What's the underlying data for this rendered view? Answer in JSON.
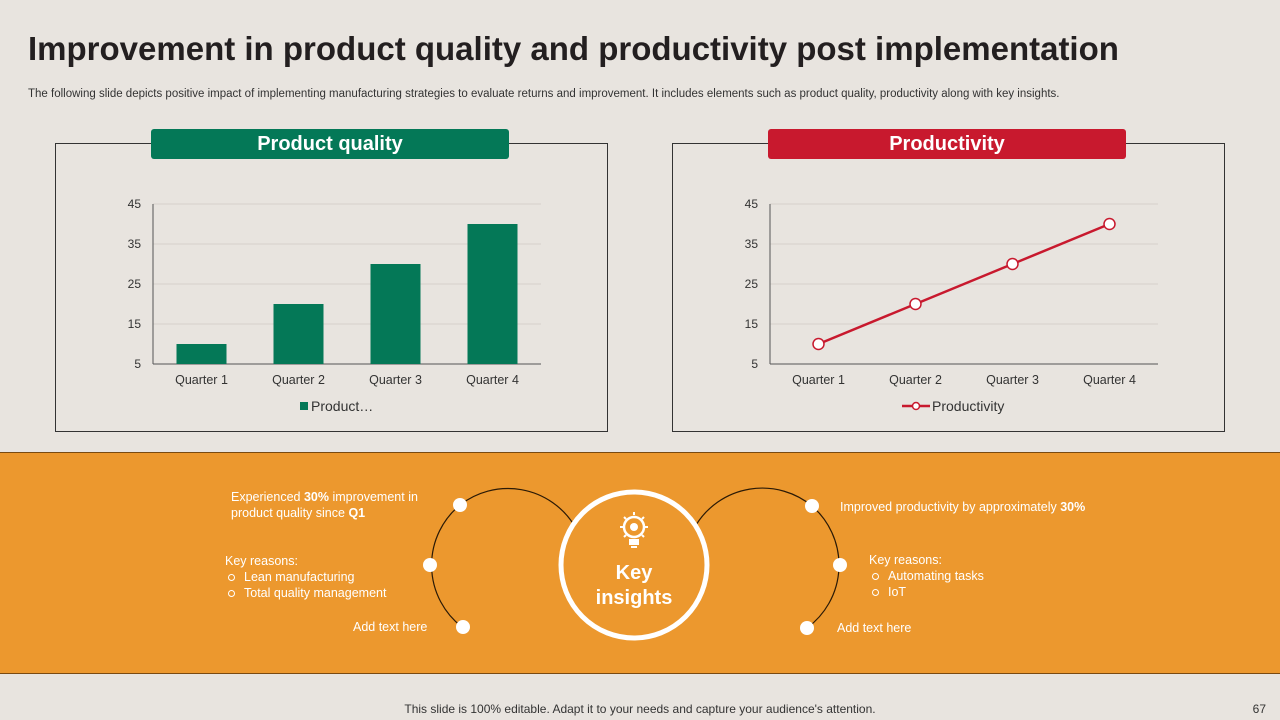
{
  "title": "Improvement in product quality and productivity post implementation",
  "subtitle": "The following slide depicts positive impact of implementing manufacturing strategies to evaluate returns and improvement. It includes elements such as product quality, productivity along with key insights.",
  "colors": {
    "green": "#047857",
    "red": "#c8192e",
    "orange": "#ec982e",
    "background": "#e8e4df"
  },
  "chart_data": [
    {
      "type": "bar",
      "title": "Product quality",
      "categories": [
        "Quarter 1",
        "Quarter 2",
        "Quarter 3",
        "Quarter 4"
      ],
      "series": [
        {
          "name": "Product…",
          "values": [
            10,
            20,
            30,
            40
          ]
        }
      ],
      "yticks": [
        "45",
        "35",
        "25",
        "15",
        "5"
      ],
      "ylim": [
        5,
        45
      ],
      "legend": "bottom",
      "grid": true
    },
    {
      "type": "line",
      "title": "Productivity",
      "categories": [
        "Quarter 1",
        "Quarter 2",
        "Quarter 3",
        "Quarter 4"
      ],
      "series": [
        {
          "name": "Productivity",
          "values": [
            10,
            20,
            30,
            40
          ]
        }
      ],
      "yticks": [
        "45",
        "35",
        "25",
        "15",
        "5"
      ],
      "ylim": [
        5,
        45
      ],
      "legend": "bottom",
      "grid": true
    }
  ],
  "insights": {
    "center_line1": "Key",
    "center_line2": "insights",
    "center_icon": "lightbulb-gear-icon",
    "left": {
      "point1_pre": "Experienced ",
      "point1_bold": "30%",
      "point1_post": " improvement  in",
      "point1_line2_pre": "product quality since ",
      "point1_line2_bold": "Q1",
      "reasons_label": "Key reasons:",
      "reasons": [
        "Lean manufacturing",
        "Total quality management"
      ],
      "add_text": "Add text here"
    },
    "right": {
      "point1_pre": "Improved  productivity  by approximately  ",
      "point1_bold": "30%",
      "reasons_label": "Key reasons:",
      "reasons": [
        "Automating tasks",
        "IoT"
      ],
      "add_text": "Add text here"
    }
  },
  "footer": "This slide is 100% editable. Adapt it to your needs and capture your audience's attention.",
  "page_number": "67"
}
